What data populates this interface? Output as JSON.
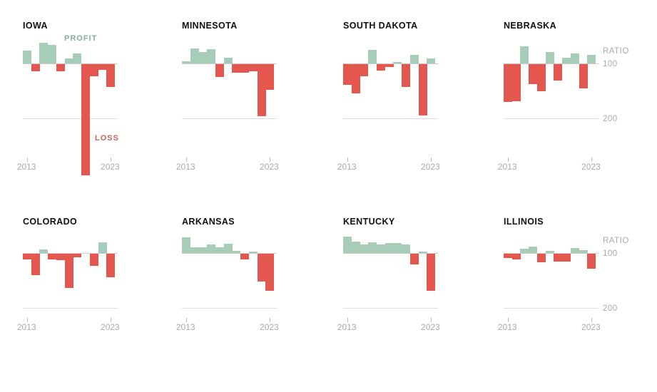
{
  "meta": {
    "x_start_label": "2013",
    "x_end_label": "2023",
    "ratio_axis_title": "RATIO",
    "ratio_100_label": "100",
    "ratio_200_label": "200",
    "profit_label": "PROFIT",
    "loss_label": "LOSS"
  },
  "colors": {
    "profit_bar": "#a7ccb8",
    "loss_bar": "#e4574e",
    "profit_text": "#8aab99",
    "loss_text": "#c7655c",
    "axis_text": "#a9a9a9",
    "baseline_line": "#c9c9c9",
    "gridline_200": "#dedede",
    "title_text": "#111111"
  },
  "chart_data": [
    {
      "type": "bar",
      "title": "IOWA",
      "x": [
        2013,
        2014,
        2015,
        2016,
        2017,
        2018,
        2019,
        2020,
        2021,
        2022,
        2023
      ],
      "values": [
        77,
        113,
        62,
        66,
        113,
        91,
        82,
        303,
        122,
        110,
        142
      ],
      "baseline": 100,
      "gridline": 200,
      "note_semantics": "ratio below 100 = profit (green up), above 100 = loss (red down)",
      "annotations": {
        "profit": "PROFIT",
        "loss": "LOSS"
      }
    },
    {
      "type": "bar",
      "title": "MINNESOTA",
      "x": [
        2013,
        2014,
        2015,
        2016,
        2017,
        2018,
        2019,
        2020,
        2021,
        2022,
        2023
      ],
      "values": [
        96,
        73,
        79,
        74,
        123,
        90,
        116,
        116,
        113,
        195,
        147
      ],
      "baseline": 100,
      "gridline": 200
    },
    {
      "type": "bar",
      "title": "SOUTH DAKOTA",
      "x": [
        2013,
        2014,
        2015,
        2016,
        2017,
        2018,
        2019,
        2020,
        2021,
        2022,
        2023
      ],
      "values": [
        137,
        153,
        122,
        75,
        112,
        105,
        97,
        142,
        85,
        194,
        91
      ],
      "baseline": 100,
      "gridline": 200
    },
    {
      "type": "bar",
      "title": "NEBRASKA",
      "x": [
        2013,
        2014,
        2015,
        2016,
        2017,
        2018,
        2019,
        2020,
        2021,
        2022,
        2023
      ],
      "values": [
        169,
        167,
        69,
        136,
        149,
        79,
        130,
        90,
        82,
        144,
        84
      ],
      "baseline": 100,
      "gridline": 200,
      "ratio_axis": true
    },
    {
      "type": "bar",
      "title": "COLORADO",
      "x": [
        2013,
        2014,
        2015,
        2016,
        2017,
        2018,
        2019,
        2020,
        2021,
        2022,
        2023
      ],
      "values": [
        110,
        139,
        93,
        110,
        111,
        162,
        107,
        100,
        122,
        81,
        143
      ],
      "baseline": 100,
      "gridline": 200
    },
    {
      "type": "bar",
      "title": "ARKANSAS",
      "x": [
        2013,
        2014,
        2015,
        2016,
        2017,
        2018,
        2019,
        2020,
        2021,
        2022,
        2023
      ],
      "values": [
        71,
        90,
        90,
        84,
        90,
        83,
        96,
        110,
        97,
        151,
        168
      ],
      "baseline": 100,
      "gridline": 200
    },
    {
      "type": "bar",
      "title": "KENTUCKY",
      "x": [
        2013,
        2014,
        2015,
        2016,
        2017,
        2018,
        2019,
        2020,
        2021,
        2022,
        2023
      ],
      "values": [
        70,
        79,
        84,
        81,
        84,
        82,
        82,
        84,
        119,
        97,
        168
      ],
      "baseline": 100,
      "gridline": 200
    },
    {
      "type": "bar",
      "title": "ILLINOIS",
      "x": [
        2013,
        2014,
        2015,
        2016,
        2017,
        2018,
        2019,
        2020,
        2021,
        2022,
        2023
      ],
      "values": [
        108,
        110,
        92,
        88,
        115,
        96,
        114,
        114,
        91,
        95,
        127
      ],
      "baseline": 100,
      "gridline": 200,
      "ratio_axis": true
    }
  ]
}
